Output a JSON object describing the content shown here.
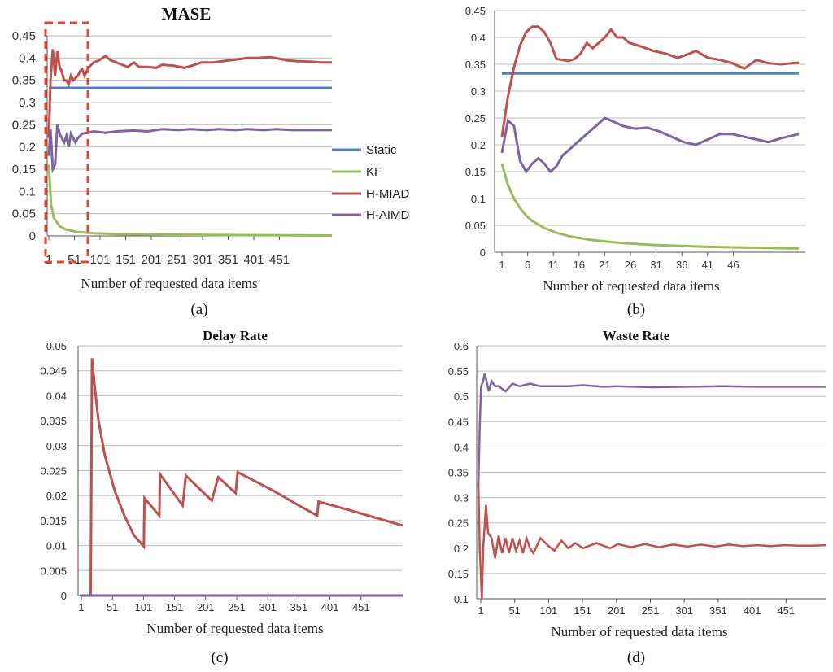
{
  "colors": {
    "static": "#4F81BD",
    "kf": "#9BBB59",
    "hmiad": "#C0504D",
    "haimd": "#8064A2",
    "highlight": "#E8462A"
  },
  "captions": [
    "(a)",
    "(b)",
    "(c)",
    "(d)"
  ],
  "chart_data": [
    {
      "id": "a",
      "type": "line",
      "title": "MASE",
      "xlabel": "Number of requested data items",
      "ylabel": "",
      "xlim": [
        1,
        500
      ],
      "ylim": [
        0,
        0.45
      ],
      "yticks": [
        "0",
        "0.05",
        "0.1",
        "0.15",
        "0.2",
        "0.25",
        "0.3",
        "0.35",
        "0.4",
        "0.45"
      ],
      "xticks": [
        "1",
        "51",
        "101",
        "151",
        "201",
        "251",
        "301",
        "351",
        "401",
        "451"
      ],
      "legend": {
        "position": "right",
        "entries": [
          "Static",
          "KF",
          "H-MIAD",
          "H-AIMD"
        ]
      },
      "annotation": "dashed highlight box over items 1-60",
      "series": [
        {
          "name": "Static",
          "x": [
            1,
            500
          ],
          "y": [
            0.333,
            0.333
          ]
        },
        {
          "name": "KF",
          "x": [
            1,
            5,
            10,
            20,
            30,
            50,
            80,
            120,
            200,
            300,
            500
          ],
          "y": [
            0.16,
            0.07,
            0.04,
            0.022,
            0.015,
            0.009,
            0.006,
            0.004,
            0.003,
            0.002,
            0.001
          ]
        },
        {
          "name": "H-MIAD",
          "x": [
            1,
            4,
            8,
            12,
            16,
            20,
            24,
            28,
            32,
            36,
            40,
            44,
            48,
            52,
            56,
            60,
            64,
            68,
            72,
            80,
            90,
            101,
            110,
            120,
            130,
            140,
            151,
            160,
            175,
            190,
            201,
            220,
            240,
            251,
            270,
            290,
            301,
            320,
            340,
            351,
            370,
            390,
            401,
            420,
            440,
            460,
            480,
            500
          ],
          "y": [
            0.22,
            0.35,
            0.42,
            0.36,
            0.415,
            0.38,
            0.37,
            0.35,
            0.35,
            0.34,
            0.36,
            0.35,
            0.355,
            0.36,
            0.37,
            0.375,
            0.36,
            0.37,
            0.38,
            0.39,
            0.395,
            0.405,
            0.395,
            0.39,
            0.385,
            0.38,
            0.39,
            0.38,
            0.38,
            0.378,
            0.385,
            0.383,
            0.378,
            0.382,
            0.39,
            0.39,
            0.392,
            0.395,
            0.398,
            0.4,
            0.4,
            0.402,
            0.4,
            0.395,
            0.393,
            0.392,
            0.39,
            0.39
          ]
        },
        {
          "name": "H-AIMD",
          "x": [
            1,
            4,
            8,
            12,
            16,
            20,
            24,
            28,
            32,
            36,
            40,
            44,
            48,
            52,
            56,
            60,
            70,
            80,
            101,
            120,
            151,
            175,
            201,
            230,
            251,
            280,
            301,
            330,
            351,
            380,
            401,
            430,
            451,
            480,
            500
          ],
          "y": [
            0.18,
            0.24,
            0.15,
            0.16,
            0.25,
            0.23,
            0.22,
            0.21,
            0.225,
            0.2,
            0.23,
            0.22,
            0.21,
            0.22,
            0.225,
            0.23,
            0.232,
            0.235,
            0.232,
            0.235,
            0.237,
            0.235,
            0.24,
            0.238,
            0.24,
            0.238,
            0.24,
            0.238,
            0.24,
            0.238,
            0.24,
            0.238,
            0.238,
            0.238,
            0.238
          ]
        }
      ]
    },
    {
      "id": "b",
      "type": "line",
      "title": "",
      "xlabel": "Number of requested data items",
      "ylabel": "",
      "xlim": [
        1,
        50
      ],
      "ylim": [
        0,
        0.45
      ],
      "yticks": [
        "0",
        "0.05",
        "0.1",
        "0.15",
        "0.2",
        "0.25",
        "0.3",
        "0.35",
        "0.4",
        "0.45"
      ],
      "xticks": [
        "1",
        "6",
        "11",
        "16",
        "21",
        "26",
        "31",
        "36",
        "41",
        "46"
      ],
      "series": [
        {
          "name": "Static",
          "x": [
            1,
            50
          ],
          "y": [
            0.333,
            0.333
          ]
        },
        {
          "name": "KF",
          "x": [
            1,
            2,
            3,
            4,
            5,
            6,
            8,
            10,
            12,
            15,
            18,
            21,
            25,
            30,
            35,
            40,
            45,
            50
          ],
          "y": [
            0.165,
            0.125,
            0.1,
            0.082,
            0.068,
            0.058,
            0.045,
            0.036,
            0.03,
            0.024,
            0.02,
            0.017,
            0.014,
            0.012,
            0.01,
            0.009,
            0.008,
            0.007
          ]
        },
        {
          "name": "H-MIAD",
          "x": [
            1,
            2,
            3,
            4,
            5,
            6,
            7,
            8,
            9,
            10,
            11,
            12,
            13,
            14,
            15,
            16,
            17,
            18,
            19,
            20,
            21,
            22,
            24,
            26,
            28,
            30,
            32,
            33,
            35,
            37,
            39,
            41,
            43,
            45,
            47,
            50
          ],
          "y": [
            0.215,
            0.29,
            0.345,
            0.385,
            0.41,
            0.42,
            0.42,
            0.41,
            0.39,
            0.36,
            0.358,
            0.356,
            0.36,
            0.37,
            0.39,
            0.38,
            0.39,
            0.4,
            0.415,
            0.4,
            0.4,
            0.39,
            0.383,
            0.375,
            0.37,
            0.362,
            0.37,
            0.375,
            0.362,
            0.358,
            0.352,
            0.342,
            0.358,
            0.352,
            0.35,
            0.353
          ]
        },
        {
          "name": "H-AIMD",
          "x": [
            1,
            2,
            3,
            4,
            5,
            6,
            7,
            8,
            9,
            10,
            11,
            12,
            14,
            16,
            18,
            19,
            21,
            23,
            25,
            27,
            29,
            31,
            33,
            35,
            37,
            39,
            41,
            43,
            45,
            47,
            50
          ],
          "y": [
            0.185,
            0.245,
            0.235,
            0.17,
            0.15,
            0.165,
            0.175,
            0.165,
            0.15,
            0.16,
            0.18,
            0.19,
            0.21,
            0.23,
            0.25,
            0.245,
            0.235,
            0.23,
            0.232,
            0.225,
            0.215,
            0.205,
            0.2,
            0.21,
            0.22,
            0.22,
            0.215,
            0.21,
            0.205,
            0.212,
            0.22
          ]
        }
      ]
    },
    {
      "id": "c",
      "type": "line",
      "title": "Delay Rate",
      "xlabel": "Number of requested data items",
      "ylabel": "",
      "xlim": [
        1,
        500
      ],
      "ylim": [
        0,
        0.05
      ],
      "yticks": [
        "0",
        "0.005",
        "0.01",
        "0.015",
        "0.02",
        "0.025",
        "0.03",
        "0.035",
        "0.04",
        "0.045",
        "0.05"
      ],
      "xticks": [
        "1",
        "51",
        "101",
        "151",
        "201",
        "251",
        "301",
        "351",
        "401",
        "451"
      ],
      "series": [
        {
          "name": "H-MIAD",
          "x": [
            18,
            20,
            24,
            30,
            40,
            55,
            70,
            85,
            100,
            101,
            124,
            125,
            160,
            165,
            205,
            215,
            242,
            245,
            300,
            340,
            368,
            370,
            420,
            500
          ],
          "y": [
            0,
            0.0475,
            0.042,
            0.035,
            0.028,
            0.021,
            0.016,
            0.012,
            0.0098,
            0.0195,
            0.016,
            0.0243,
            0.018,
            0.024,
            0.019,
            0.0237,
            0.0205,
            0.0247,
            0.021,
            0.018,
            0.016,
            0.0188,
            0.017,
            0.014
          ]
        },
        {
          "name": "H-AIMD",
          "x": [
            1,
            500
          ],
          "y": [
            0,
            0
          ]
        }
      ]
    },
    {
      "id": "d",
      "type": "line",
      "title": "Waste Rate",
      "xlabel": "Number of requested data items",
      "ylabel": "",
      "xlim": [
        1,
        500
      ],
      "ylim": [
        0.1,
        0.6
      ],
      "yticks": [
        "0.1",
        "0.15",
        "0.2",
        "0.25",
        "0.3",
        "0.35",
        "0.4",
        "0.45",
        "0.5",
        "0.55",
        "0.6"
      ],
      "xticks": [
        "1",
        "51",
        "101",
        "151",
        "201",
        "251",
        "301",
        "351",
        "401",
        "451"
      ],
      "series": [
        {
          "name": "H-AIMD",
          "x": [
            1,
            3,
            5,
            8,
            10,
            12,
            16,
            20,
            25,
            30,
            40,
            50,
            60,
            75,
            90,
            101,
            130,
            151,
            180,
            201,
            250,
            300,
            351,
            400,
            451,
            500
          ],
          "y": [
            0.32,
            0.44,
            0.52,
            0.53,
            0.545,
            0.535,
            0.51,
            0.53,
            0.52,
            0.52,
            0.51,
            0.525,
            0.52,
            0.525,
            0.52,
            0.52,
            0.52,
            0.522,
            0.519,
            0.52,
            0.518,
            0.519,
            0.52,
            0.519,
            0.519,
            0.519
          ]
        },
        {
          "name": "H-MIAD",
          "x": [
            1,
            3,
            6,
            8,
            12,
            15,
            20,
            25,
            30,
            35,
            40,
            45,
            50,
            55,
            60,
            65,
            70,
            75,
            80,
            90,
            101,
            110,
            120,
            130,
            140,
            151,
            170,
            190,
            201,
            220,
            240,
            260,
            280,
            301,
            320,
            340,
            360,
            380,
            401,
            420,
            440,
            460,
            480,
            500
          ],
          "y": [
            0.33,
            0.2,
            0.1,
            0.2,
            0.285,
            0.23,
            0.22,
            0.18,
            0.225,
            0.19,
            0.22,
            0.19,
            0.22,
            0.195,
            0.215,
            0.19,
            0.22,
            0.2,
            0.19,
            0.22,
            0.205,
            0.195,
            0.215,
            0.2,
            0.21,
            0.2,
            0.21,
            0.2,
            0.208,
            0.202,
            0.208,
            0.202,
            0.207,
            0.203,
            0.207,
            0.203,
            0.207,
            0.204,
            0.206,
            0.204,
            0.206,
            0.205,
            0.205,
            0.206
          ]
        }
      ]
    }
  ]
}
